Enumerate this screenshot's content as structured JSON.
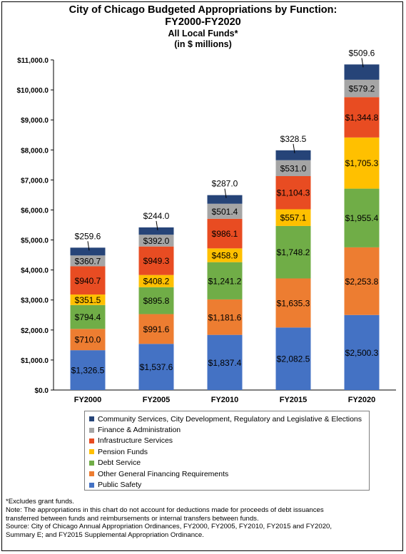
{
  "title": "City of Chicago Budgeted Appropriations by Function:",
  "subtitle_line1": "FY2000-FY2020",
  "subtitle_line2": "All Local Funds*",
  "subtitle_line3": "(in $ millions)",
  "notes": [
    "*Excludes grant funds.",
    "Note: The appropriations in this chart do not account for deductions made for proceeds of debt issuances",
    "transferred between funds and reimbursements or internal transfers between funds.",
    "Source: City of Chicago Annual Appropriation Ordinances, FY2000, FY2005, FY2010, FY2015 and FY2020,",
    "Summary E; and FY2015 Supplemental Appropriation Ordinance."
  ],
  "chart_data": {
    "type": "bar",
    "stacked": true,
    "categories": [
      "FY2000",
      "FY2005",
      "FY2010",
      "FY2015",
      "FY2020"
    ],
    "ylim": [
      0,
      11000
    ],
    "yticks": [
      "$0.0",
      "$1,000.0",
      "$2,000.0",
      "$3,000.0",
      "$4,000.0",
      "$5,000.0",
      "$6,000.0",
      "$7,000.0",
      "$8,000.0",
      "$9,000.0",
      "$10,000.0",
      "$11,000.0"
    ],
    "grid": false,
    "legend_position": "bottom",
    "series": [
      {
        "name": "Public Safety",
        "color": "#4472C4",
        "values": [
          1326.5,
          1537.6,
          1837.4,
          2082.5,
          2500.3
        ],
        "labels": [
          "$1,326.5",
          "$1,537.6",
          "$1,837.4",
          "$2,082.5",
          "$2,500.3"
        ]
      },
      {
        "name": "Other General Financing Requirements",
        "color": "#ED7D31",
        "values": [
          710.0,
          991.6,
          1181.6,
          1635.3,
          2253.8
        ],
        "labels": [
          "$710.0",
          "$991.6",
          "$1,181.6",
          "$1,635.3",
          "$2,253.8"
        ]
      },
      {
        "name": "Debt Service",
        "color": "#70AD47",
        "values": [
          794.4,
          895.8,
          1241.2,
          1748.2,
          1955.4
        ],
        "labels": [
          "$794.4",
          "$895.8",
          "$1,241.2",
          "$1,748.2",
          "$1,955.4"
        ]
      },
      {
        "name": "Pension Funds",
        "color": "#FFC000",
        "values": [
          351.5,
          408.2,
          458.9,
          557.1,
          1705.3
        ],
        "labels": [
          "$351.5",
          "$408.2",
          "$458.9",
          "$557.1",
          "$1,705.3"
        ]
      },
      {
        "name": "Infrastructure Services",
        "color": "#E84C22",
        "values": [
          940.7,
          949.3,
          986.1,
          1104.3,
          1344.8
        ],
        "labels": [
          "$940.7",
          "$949.3",
          "$986.1",
          "$1,104.3",
          "$1,344.8"
        ]
      },
      {
        "name": "Finance & Administration",
        "color": "#A5A5A5",
        "values": [
          360.7,
          392.0,
          501.4,
          531.0,
          579.2
        ],
        "labels": [
          "$360.7",
          "$392.0",
          "$501.4",
          "$531.0",
          "$579.2"
        ]
      },
      {
        "name": "Community Services, City Development, Regulatory and Legislative & Elections",
        "color": "#264478",
        "values": [
          259.6,
          244.0,
          287.0,
          328.5,
          509.6
        ],
        "labels": [
          "$259.6",
          "$244.0",
          "$287.0",
          "$328.5",
          "$509.6"
        ]
      }
    ]
  }
}
